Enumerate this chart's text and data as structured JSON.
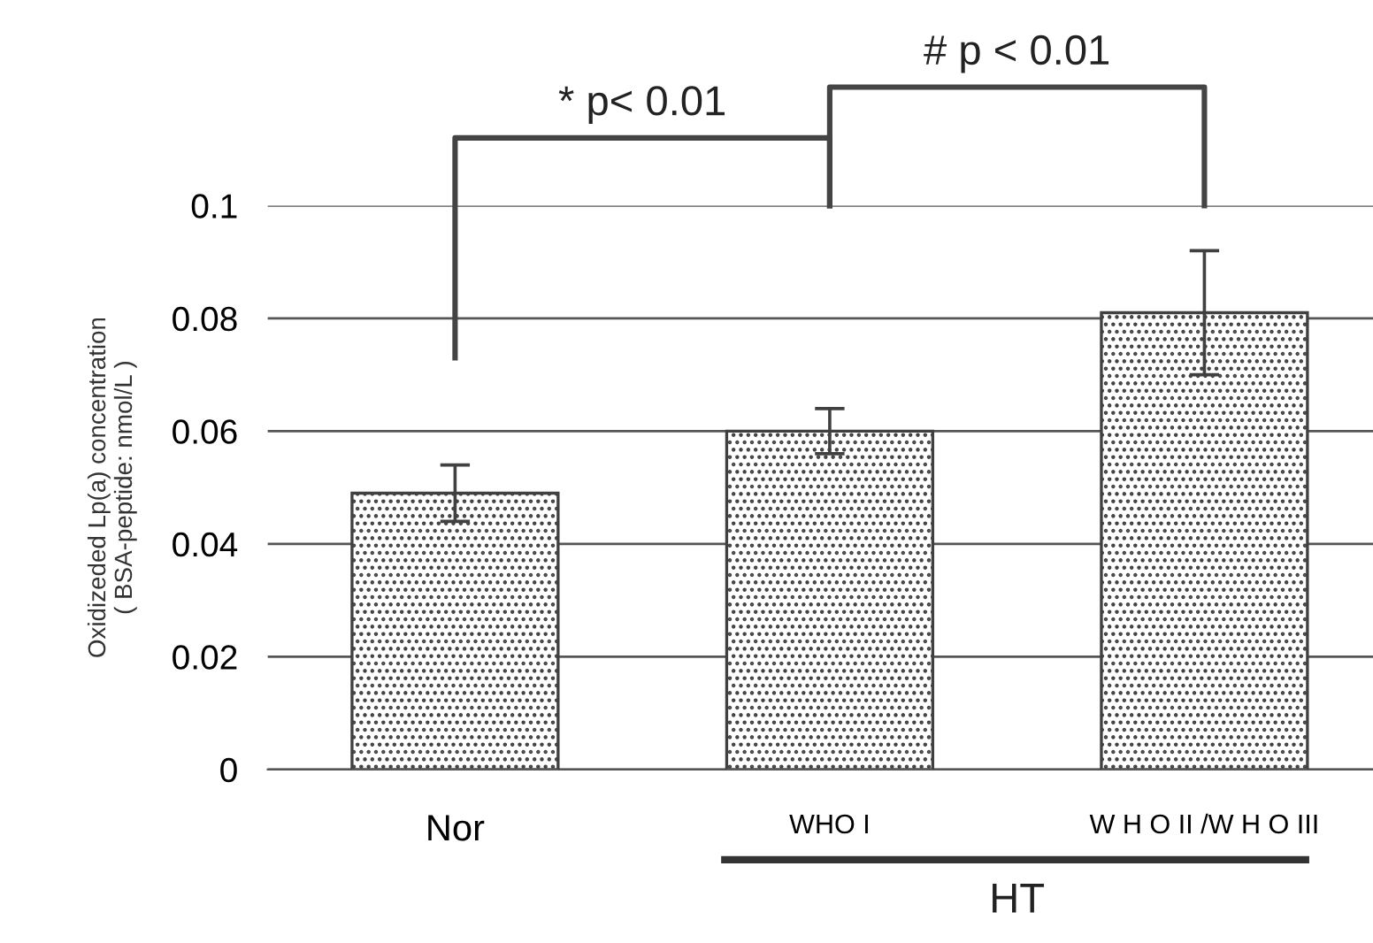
{
  "chart_data": {
    "type": "bar",
    "ylabel": "Oxidizeded Lp(a) concentration\n( BSA-peptide: nmol/L )",
    "categories": [
      "Nor",
      "WHO I",
      "W H O II /W H O III"
    ],
    "values": [
      0.049,
      0.06,
      0.081
    ],
    "errors": [
      0.005,
      0.004,
      0.011
    ],
    "color": "#404040",
    "ylim": [
      0,
      0.1
    ],
    "yticks": [
      0,
      0.02,
      0.04,
      0.06,
      0.08,
      0.1
    ],
    "grid": "y",
    "annotations": [
      "* p< 0.01",
      "# p < 0.01",
      "HT"
    ]
  }
}
